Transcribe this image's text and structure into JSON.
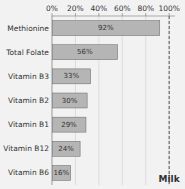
{
  "chart_data": {
    "type": "bar",
    "orientation": "horizontal",
    "categories": [
      "Methionine",
      "Total Folate",
      "Vitamin B3",
      "Vitamin B2",
      "Vitamin B1",
      "Vitamin B12",
      "Vitamin B6"
    ],
    "values": [
      92,
      56,
      33,
      30,
      29,
      24,
      16
    ],
    "value_labels": [
      "92%",
      "56%",
      "33%",
      "30%",
      "29%",
      "24%",
      "16%"
    ],
    "data_labels": true,
    "color": "#b5b5b5",
    "xlim": [
      0,
      105
    ],
    "xticks": [
      {
        "value": 0,
        "label": "0%"
      },
      {
        "value": 20,
        "label": "20%"
      },
      {
        "value": 40,
        "label": "40%"
      },
      {
        "value": 60,
        "label": "60%"
      },
      {
        "value": 80,
        "label": "80%"
      },
      {
        "value": 100,
        "label": "100%"
      }
    ],
    "grid": true,
    "annotations": [
      {
        "text": "Milk",
        "x": 100
      }
    ]
  }
}
